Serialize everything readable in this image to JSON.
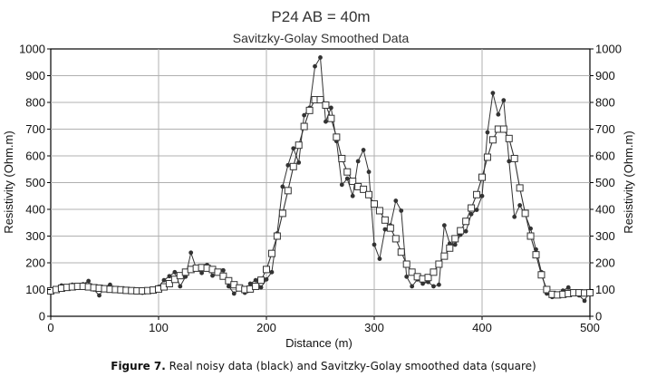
{
  "chart_data": {
    "type": "line",
    "title": "P24 AB = 40m",
    "subtitle": "Savitzky-Golay Smoothed Data",
    "xlabel": "Distance (m)",
    "ylabel": "Resistivity (Ohm.m)",
    "ylabel_right": "Resistivity (Ohm.m)",
    "xlim": [
      0,
      500
    ],
    "ylim": [
      0,
      1000
    ],
    "x_ticks": [
      "0",
      "100",
      "200",
      "300",
      "400",
      "500"
    ],
    "y_ticks": [
      "0",
      "100",
      "200",
      "300",
      "400",
      "500",
      "600",
      "700",
      "800",
      "900",
      "1000"
    ],
    "grid": true,
    "series": [
      {
        "name": "Real noisy data",
        "marker": "filled-circle",
        "color": "#333333",
        "x": [
          0,
          5,
          10,
          15,
          20,
          25,
          30,
          35,
          40,
          45,
          50,
          55,
          60,
          65,
          70,
          75,
          80,
          85,
          90,
          95,
          100,
          105,
          110,
          115,
          120,
          125,
          130,
          135,
          140,
          145,
          150,
          155,
          160,
          165,
          170,
          175,
          180,
          185,
          190,
          195,
          200,
          205,
          210,
          215,
          220,
          225,
          230,
          235,
          240,
          245,
          250,
          255,
          260,
          265,
          270,
          275,
          280,
          285,
          290,
          295,
          300,
          305,
          310,
          315,
          320,
          325,
          330,
          335,
          340,
          345,
          350,
          355,
          360,
          365,
          370,
          375,
          380,
          385,
          390,
          395,
          400,
          405,
          410,
          415,
          420,
          425,
          430,
          435,
          440,
          445,
          450,
          455,
          460,
          465,
          470,
          475,
          480,
          485,
          490,
          495,
          500
        ],
        "values": [
          90,
          100,
          115,
          105,
          118,
          112,
          120,
          132,
          100,
          78,
          108,
          118,
          98,
          102,
          92,
          95,
          90,
          88,
          96,
          92,
          110,
          135,
          150,
          165,
          112,
          148,
          238,
          178,
          162,
          192,
          152,
          162,
          172,
          112,
          85,
          102,
          88,
          122,
          135,
          108,
          138,
          165,
          310,
          485,
          565,
          628,
          575,
          752,
          780,
          935,
          968,
          728,
          780,
          655,
          492,
          515,
          450,
          580,
          622,
          540,
          268,
          215,
          325,
          340,
          432,
          395,
          148,
          112,
          138,
          122,
          128,
          112,
          118,
          340,
          272,
          268,
          305,
          318,
          382,
          398,
          450,
          688,
          835,
          755,
          808,
          580,
          372,
          415,
          380,
          328,
          250,
          165,
          85,
          72,
          82,
          96,
          108,
          88,
          78,
          58,
          95
        ]
      },
      {
        "name": "Savitzky-Golay smoothed data",
        "marker": "open-square",
        "color": "#333333",
        "x": [
          0,
          5,
          10,
          15,
          20,
          25,
          30,
          35,
          40,
          45,
          50,
          55,
          60,
          65,
          70,
          75,
          80,
          85,
          90,
          95,
          100,
          105,
          110,
          115,
          120,
          125,
          130,
          135,
          140,
          145,
          150,
          155,
          160,
          165,
          170,
          175,
          180,
          185,
          190,
          195,
          200,
          205,
          210,
          215,
          220,
          225,
          230,
          235,
          240,
          245,
          250,
          255,
          260,
          265,
          270,
          275,
          280,
          285,
          290,
          295,
          300,
          305,
          310,
          315,
          320,
          325,
          330,
          335,
          340,
          345,
          350,
          355,
          360,
          365,
          370,
          375,
          380,
          385,
          390,
          395,
          400,
          405,
          410,
          415,
          420,
          425,
          430,
          435,
          440,
          445,
          450,
          455,
          460,
          465,
          470,
          475,
          480,
          485,
          490,
          495,
          500
        ],
        "values": [
          95,
          100,
          105,
          108,
          110,
          112,
          112,
          110,
          107,
          105,
          103,
          101,
          100,
          99,
          97,
          96,
          95,
          95,
          96,
          98,
          102,
          110,
          122,
          138,
          152,
          165,
          175,
          180,
          182,
          180,
          175,
          165,
          150,
          133,
          118,
          106,
          100,
          102,
          112,
          135,
          175,
          235,
          300,
          385,
          470,
          560,
          640,
          710,
          770,
          810,
          810,
          790,
          740,
          670,
          590,
          540,
          505,
          485,
          475,
          455,
          420,
          395,
          360,
          330,
          290,
          240,
          195,
          165,
          148,
          140,
          145,
          165,
          195,
          225,
          255,
          290,
          320,
          355,
          405,
          455,
          520,
          595,
          660,
          700,
          700,
          665,
          590,
          480,
          385,
          300,
          230,
          155,
          100,
          82,
          80,
          82,
          85,
          88,
          88,
          87,
          88
        ]
      }
    ]
  },
  "caption": {
    "figure_label": "Figure 7.",
    "text": " Real noisy data (black) and Savitzky-Golay smoothed data (square)"
  }
}
